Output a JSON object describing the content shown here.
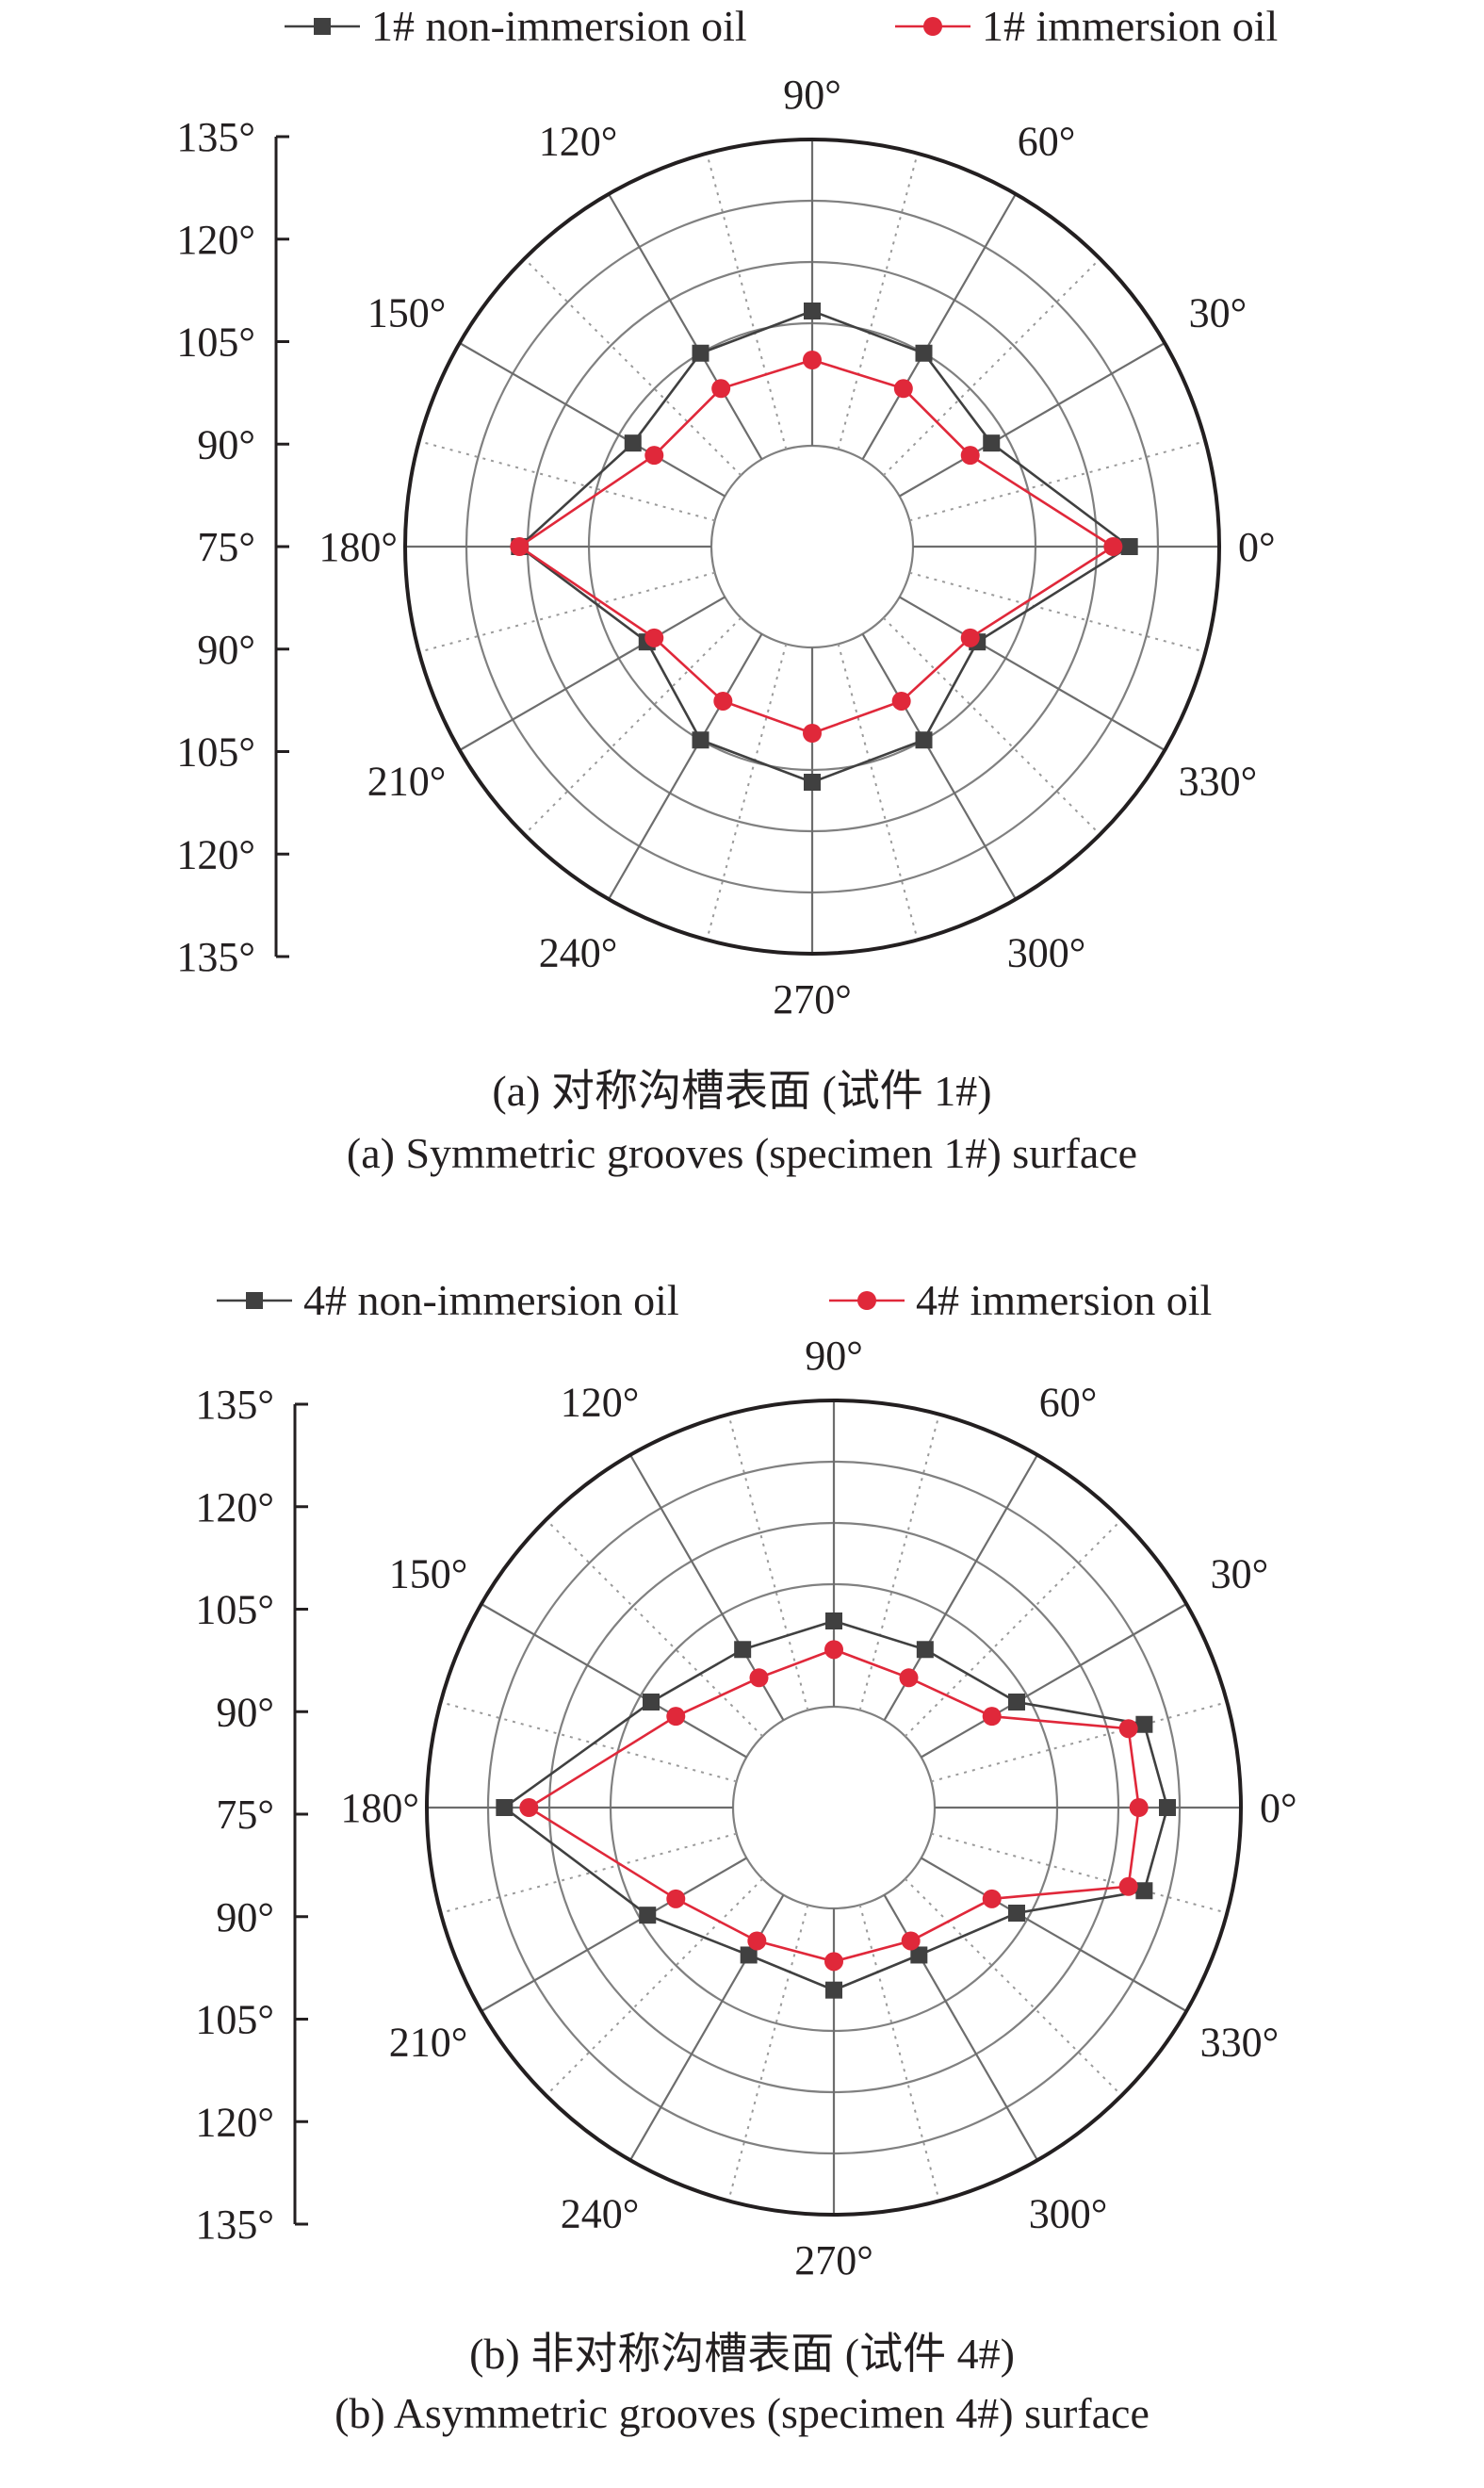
{
  "chart_data": [
    {
      "type": "polar-line",
      "title": "",
      "caption_cn": "(a) 对称沟槽表面 (试件 1#)",
      "caption_en": "(a) Symmetric grooves (specimen 1#) surface",
      "angle_ticks": [
        "0°",
        "30°",
        "60°",
        "90°",
        "120°",
        "150°",
        "180°",
        "210°",
        "240°",
        "270°",
        "300°",
        "330°"
      ],
      "radial_axis": {
        "tick_labels": [
          "135°",
          "120°",
          "105°",
          "90°",
          "75°",
          "90°",
          "105°",
          "120°",
          "135°"
        ],
        "center_value": 60,
        "outer_value": 135
      },
      "angles": [
        0,
        30,
        60,
        90,
        120,
        150,
        180,
        210,
        240,
        270,
        300,
        330
      ],
      "series": [
        {
          "name": "1# non-immersion oil",
          "marker": "square",
          "color": "#404040",
          "values": [
            113,
            86,
            90,
            93,
            90,
            86,
            107,
            82,
            90,
            93,
            90,
            82
          ]
        },
        {
          "name": "1# immersion oil",
          "marker": "circle",
          "color": "#e0283a",
          "values": [
            109,
            80,
            80,
            81,
            80,
            80,
            107,
            80,
            79,
            81,
            79,
            80
          ]
        }
      ],
      "legend_position": "top"
    },
    {
      "type": "polar-line",
      "title": "",
      "caption_cn": "(b) 非对称沟槽表面 (试件 4#)",
      "caption_en": "(b) Asymmetric grooves (specimen 4#) surface",
      "angle_ticks": [
        "0°",
        "30°",
        "60°",
        "90°",
        "120°",
        "150°",
        "180°",
        "210°",
        "240°",
        "270°",
        "300°",
        "330°"
      ],
      "radial_axis": {
        "tick_labels": [
          "135°",
          "120°",
          "105°",
          "90°",
          "75°",
          "90°",
          "105°",
          "120°",
          "135°"
        ],
        "center_value": 60,
        "outer_value": 135
      },
      "angles": [
        0,
        15,
        30,
        60,
        90,
        120,
        150,
        180,
        210,
        240,
        270,
        300,
        330,
        345
      ],
      "series": [
        {
          "name": "4# non-immersion oil",
          "marker": "square",
          "color": "#404040",
          "values": [
            117,
            114,
            87,
            80,
            81,
            80,
            87,
            116,
            88,
            77,
            80,
            77,
            87,
            114
          ]
        },
        {
          "name": "4# immersion oil",
          "marker": "circle",
          "color": "#e0283a",
          "values": [
            110,
            110,
            80,
            72,
            74,
            72,
            80,
            110,
            80,
            73,
            73,
            73,
            80,
            110
          ]
        }
      ],
      "legend_position": "top"
    }
  ]
}
